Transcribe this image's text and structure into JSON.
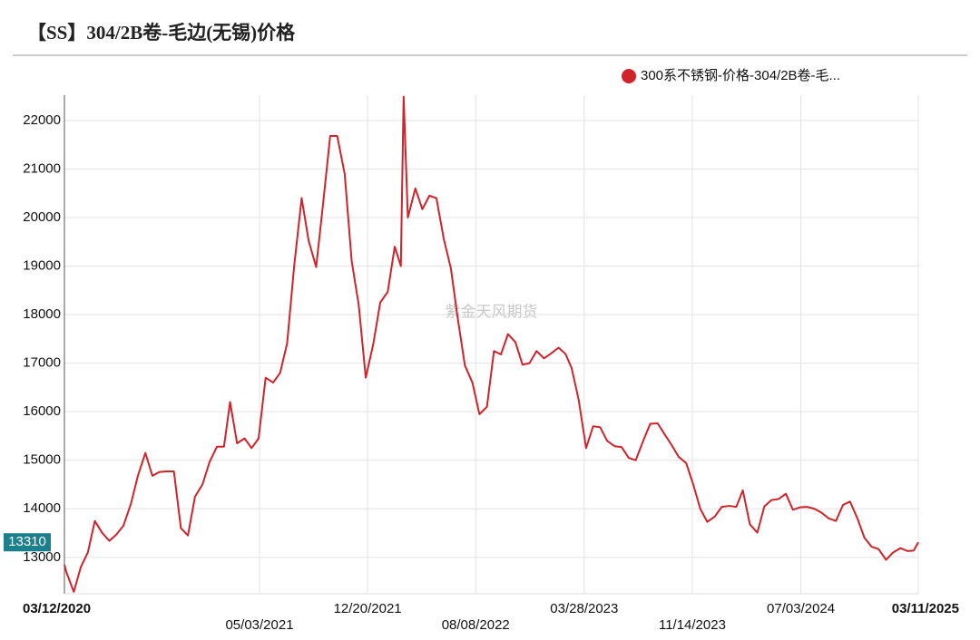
{
  "chart_data": {
    "type": "line",
    "title": "【SS】304/2B卷-毛边(无锡)价格",
    "watermark": "紫金天风期货",
    "legend_position": "top-right",
    "grid": true,
    "xlim": [
      "03/12/2020",
      "03/11/2025"
    ],
    "xticks": [
      "03/12/2020",
      "05/03/2021",
      "12/20/2021",
      "08/08/2022",
      "03/28/2023",
      "11/14/2023",
      "07/03/2024",
      "03/11/2025"
    ],
    "ylim": [
      12250,
      22520
    ],
    "yticks": [
      13000,
      14000,
      15000,
      16000,
      17000,
      18000,
      19000,
      20000,
      21000,
      22000
    ],
    "x": [
      "03/12/2020",
      "03/16/2020",
      "04/01/2020",
      "04/16/2020",
      "05/01/2020",
      "05/16/2020",
      "06/01/2020",
      "06/16/2020",
      "07/01/2020",
      "07/16/2020",
      "08/01/2020",
      "08/16/2020",
      "09/01/2020",
      "09/16/2020",
      "10/01/2020",
      "10/16/2020",
      "11/01/2020",
      "11/16/2020",
      "12/01/2020",
      "12/16/2020",
      "01/01/2021",
      "01/16/2021",
      "02/01/2021",
      "02/16/2021",
      "03/01/2021",
      "03/16/2021",
      "04/01/2021",
      "04/16/2021",
      "05/01/2021",
      "05/16/2021",
      "06/01/2021",
      "06/16/2021",
      "07/01/2021",
      "07/16/2021",
      "08/01/2021",
      "08/16/2021",
      "09/01/2021",
      "09/16/2021",
      "10/01/2021",
      "10/16/2021",
      "11/01/2021",
      "11/16/2021",
      "12/01/2021",
      "12/16/2021",
      "01/01/2022",
      "01/16/2022",
      "02/01/2022",
      "02/16/2022",
      "03/01/2022",
      "03/07/2022",
      "03/16/2022",
      "04/01/2022",
      "04/16/2022",
      "05/01/2022",
      "05/16/2022",
      "06/01/2022",
      "06/16/2022",
      "07/01/2022",
      "07/16/2022",
      "08/01/2022",
      "08/16/2022",
      "09/01/2022",
      "09/16/2022",
      "10/01/2022",
      "10/16/2022",
      "11/01/2022",
      "11/16/2022",
      "12/01/2022",
      "12/16/2022",
      "01/01/2023",
      "01/16/2023",
      "02/01/2023",
      "02/16/2023",
      "03/01/2023",
      "03/16/2023",
      "04/01/2023",
      "04/16/2023",
      "05/01/2023",
      "05/16/2023",
      "06/01/2023",
      "06/16/2023",
      "07/01/2023",
      "07/16/2023",
      "08/01/2023",
      "08/16/2023",
      "09/01/2023",
      "09/16/2023",
      "10/01/2023",
      "10/16/2023",
      "11/01/2023",
      "11/16/2023",
      "12/01/2023",
      "12/16/2023",
      "01/01/2024",
      "01/16/2024",
      "02/01/2024",
      "02/16/2024",
      "03/01/2024",
      "03/16/2024",
      "04/01/2024",
      "04/16/2024",
      "05/01/2024",
      "05/16/2024",
      "06/01/2024",
      "06/16/2024",
      "07/01/2024",
      "07/16/2024",
      "08/01/2024",
      "08/16/2024",
      "09/01/2024",
      "09/16/2024",
      "10/01/2024",
      "10/16/2024",
      "11/01/2024",
      "11/16/2024",
      "12/01/2024",
      "12/16/2024",
      "01/01/2025",
      "01/16/2025",
      "02/01/2025",
      "02/16/2025",
      "03/01/2025",
      "03/11/2025"
    ],
    "series": [
      {
        "name": "300系不锈钢-价格-304/2B卷-毛...",
        "color": "#d0232a",
        "current_value": 13310,
        "values": [
          12850,
          12700,
          12290,
          12800,
          13100,
          13750,
          13500,
          13340,
          13470,
          13650,
          14100,
          14680,
          15150,
          14680,
          14760,
          14770,
          14770,
          13600,
          13450,
          14250,
          14500,
          14960,
          15280,
          15280,
          16200,
          15350,
          15450,
          15250,
          15450,
          16700,
          16600,
          16800,
          17410,
          19000,
          20400,
          19520,
          18980,
          20300,
          21680,
          21680,
          20900,
          19100,
          18200,
          16700,
          17390,
          18250,
          18470,
          19400,
          19000,
          22490,
          20000,
          20600,
          20170,
          20450,
          20400,
          19550,
          18950,
          17900,
          16950,
          16600,
          15950,
          16100,
          17250,
          17180,
          17600,
          17430,
          16970,
          17000,
          17250,
          17100,
          17200,
          17320,
          17190,
          16900,
          16250,
          15250,
          15700,
          15680,
          15400,
          15290,
          15270,
          15050,
          15000,
          15400,
          15750,
          15760,
          15530,
          15310,
          15070,
          14940,
          14500,
          14000,
          13730,
          13840,
          14040,
          14060,
          14040,
          14380,
          13680,
          13510,
          14050,
          14180,
          14200,
          14310,
          13980,
          14030,
          14040,
          14000,
          13920,
          13800,
          13750,
          14080,
          14150,
          13800,
          13400,
          13220,
          13170,
          12950,
          13100,
          13190,
          13130,
          13140,
          13310
        ]
      }
    ]
  }
}
